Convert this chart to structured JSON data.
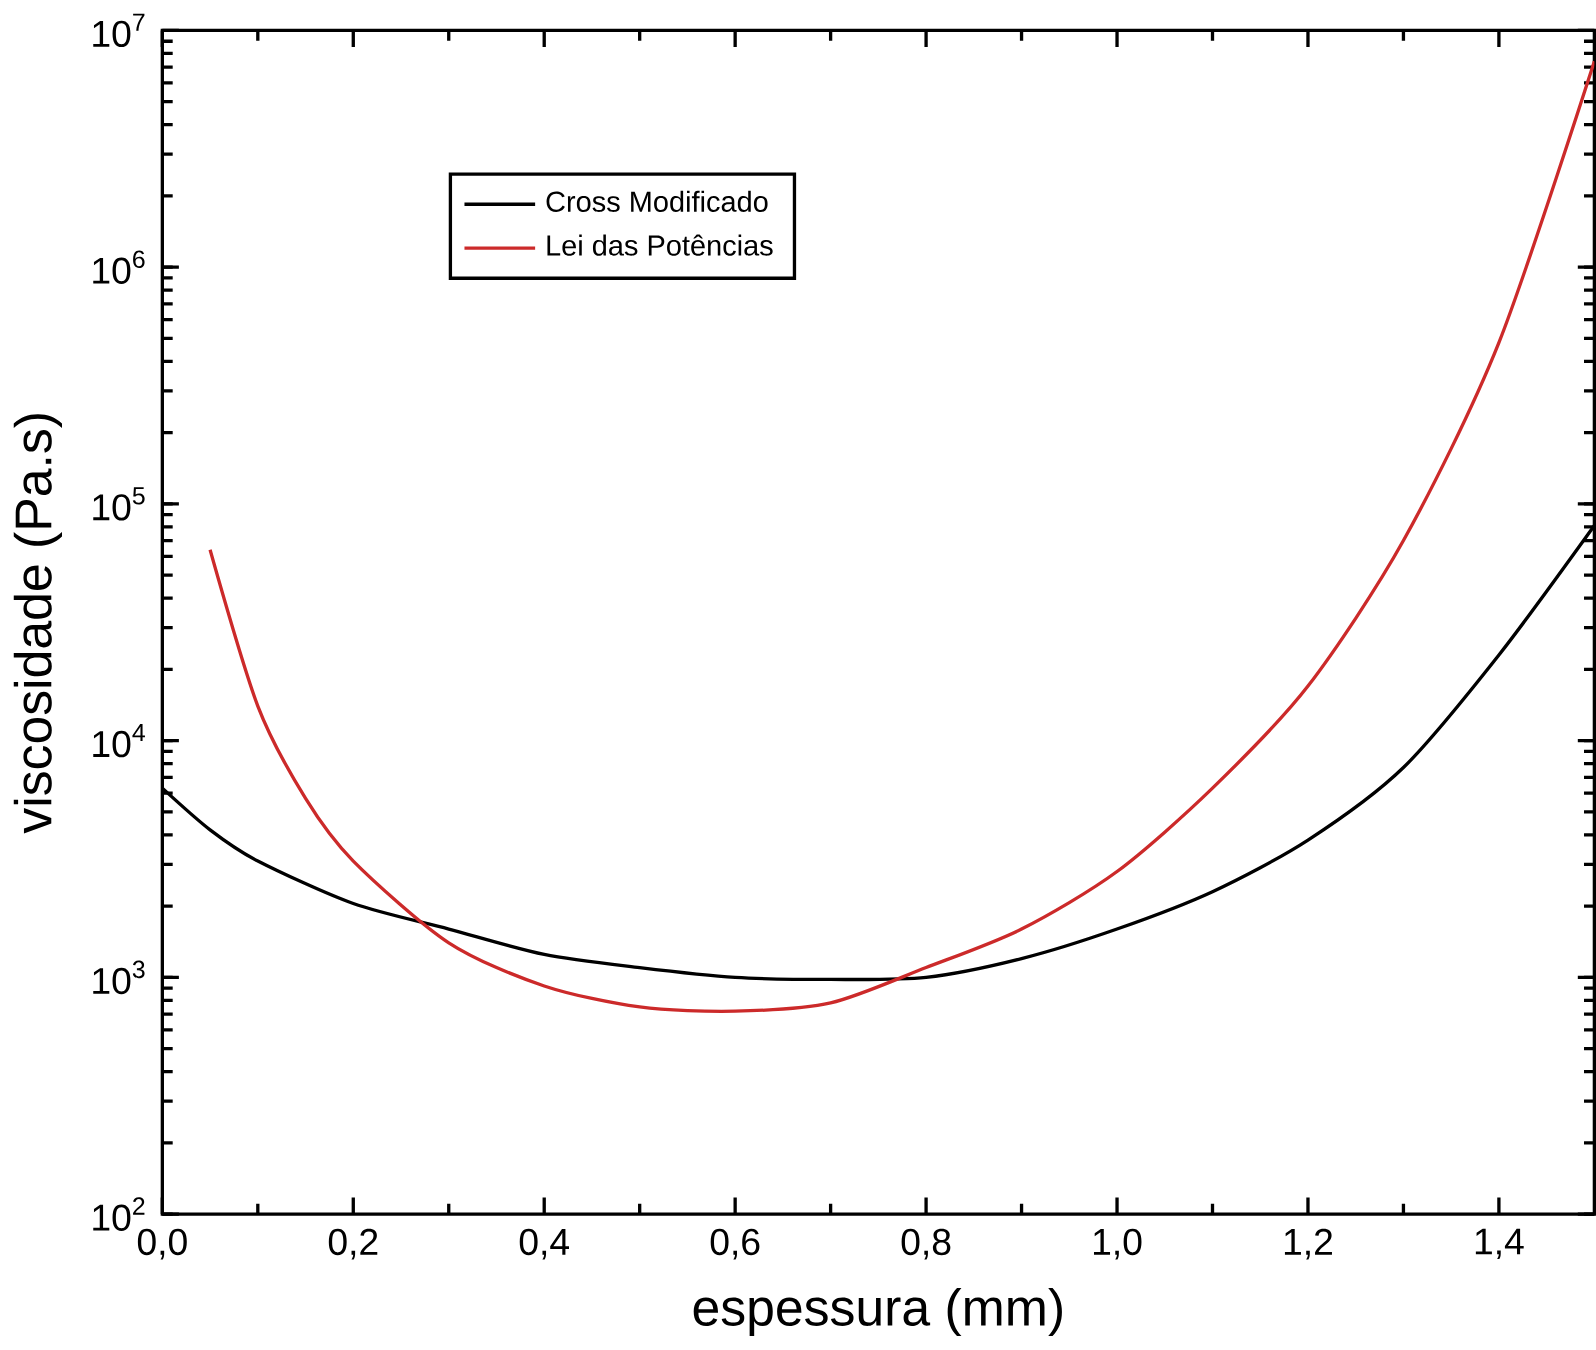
{
  "chart_data": {
    "type": "line",
    "xlabel": "espessura (mm)",
    "ylabel": "viscosidade (Pa.s)",
    "log": "y",
    "grid": false,
    "legend": "top left",
    "marker": "none",
    "line_style": "solid",
    "xlim": [
      0,
      1.5
    ],
    "ylim": [
      100,
      10000000
    ],
    "xticks": [
      {
        "value": 0,
        "label": "0,0"
      },
      {
        "value": 0.2,
        "label": "0,2"
      },
      {
        "value": 0.4,
        "label": "0,4"
      },
      {
        "value": 0.6,
        "label": "0,6"
      },
      {
        "value": 0.8,
        "label": "0,8"
      },
      {
        "value": 1.0,
        "label": "1,0"
      },
      {
        "value": 1.2,
        "label": "1,2"
      },
      {
        "value": 1.4,
        "label": "1,4"
      }
    ],
    "yticks": [
      {
        "value": 100,
        "label": "10$^{2}$"
      },
      {
        "value": 1000,
        "label": "10$^{3}$"
      },
      {
        "value": 10000,
        "label": "10$^{4}$"
      },
      {
        "value": 100000,
        "label": "10$^{5}$"
      },
      {
        "value": 1000000,
        "label": "10$^{6}$"
      },
      {
        "value": 10000000,
        "label": "10$^{7}$"
      }
    ],
    "series": [
      {
        "name": "Cross Modificado",
        "color": "#000000",
        "x": [
          0,
          0.05,
          0.1,
          0.2,
          0.3,
          0.4,
          0.5,
          0.6,
          0.7,
          0.8,
          0.9,
          1.0,
          1.1,
          1.2,
          1.3,
          1.4,
          1.5
        ],
        "values": [
          6300,
          4200,
          3100,
          2050,
          1600,
          1250,
          1100,
          1000,
          980,
          1000,
          1200,
          1600,
          2300,
          3800,
          7700,
          23000,
          81000
        ]
      },
      {
        "name": "Lei das Potências",
        "color": "#cc2a2a",
        "x": [
          0.05,
          0.1,
          0.15,
          0.2,
          0.3,
          0.4,
          0.5,
          0.6,
          0.7,
          0.8,
          0.9,
          1.0,
          1.1,
          1.2,
          1.3,
          1.4,
          1.5
        ],
        "values": [
          64000,
          14000,
          5700,
          3100,
          1400,
          920,
          750,
          720,
          780,
          1100,
          1600,
          2800,
          6300,
          17000,
          70000,
          480000,
          7400000
        ]
      }
    ]
  }
}
